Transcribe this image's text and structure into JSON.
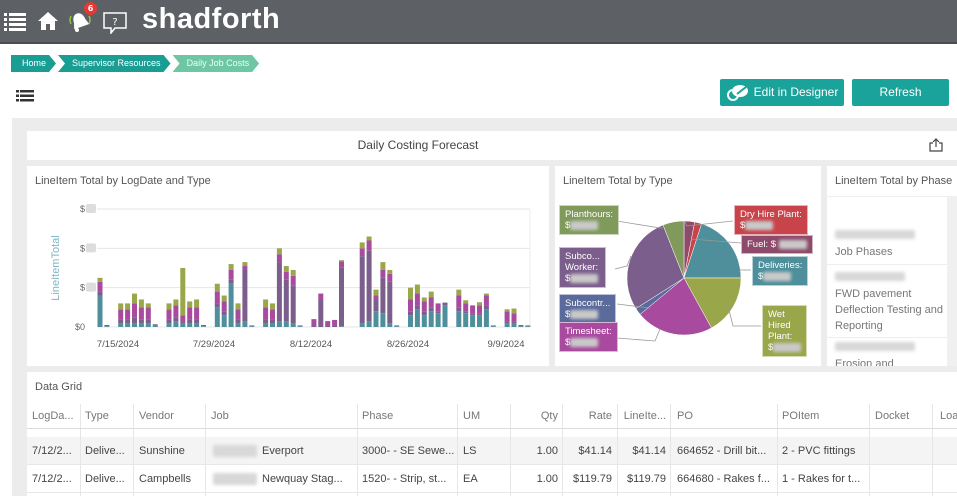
{
  "header": {
    "brand": "shadforth",
    "notification_count": "6",
    "icons": [
      "menu-icon",
      "home-icon",
      "bell-icon",
      "help-chat-icon"
    ]
  },
  "breadcrumb": [
    "Home",
    "Supervisor Resources",
    "Daily Job Costs"
  ],
  "toolbar": {
    "edit_label": "Edit in Designer",
    "refresh_label": "Refresh"
  },
  "dashboard": {
    "title": "Daily Costing Forecast"
  },
  "colors": {
    "accent": "#1aa39a",
    "teal": "#4e8f9b",
    "purple": "#7c5e8d",
    "magenta": "#a84a9e",
    "olive": "#9aa64a",
    "red": "#c8444a",
    "mauve": "#8e4a6a",
    "blue": "#5a6a9a",
    "green": "#7f9a5a"
  },
  "bar_panel": {
    "title": "LineItem Total by LogDate and Type"
  },
  "pie_panel": {
    "title": "LineItem Total by Type"
  },
  "phase_panel": {
    "title": "LineItem Total by Phase",
    "items": [
      "Job Phases",
      "FWD pavement Deflection Testing and Reporting",
      "Erosion and"
    ]
  },
  "chart_data": [
    {
      "type": "bar",
      "stacked": true,
      "title": "LineItem Total by LogDate and Type",
      "xlabel": "",
      "ylabel": "LineItemTotal",
      "ytick_labels": [
        "$0",
        "$",
        "$",
        "$"
      ],
      "ylim": [
        0,
        3
      ],
      "grid": true,
      "xtick_labels": [
        "7/15/2024",
        "7/29/2024",
        "8/12/2024",
        "8/26/2024",
        "9/9/2024"
      ],
      "series_colors": [
        "#4e8f9b",
        "#7c5e8d",
        "#a84a9e",
        "#9aa64a"
      ],
      "dates": [
        "7/12",
        "7/13",
        "7/15",
        "7/16",
        "7/17",
        "7/18",
        "7/19",
        "7/20",
        "7/22",
        "7/23",
        "7/24",
        "7/25",
        "7/26",
        "7/27",
        "7/29",
        "7/30",
        "7/31",
        "8/1",
        "8/2",
        "8/3",
        "8/5",
        "8/6",
        "8/7",
        "8/8",
        "8/9",
        "8/10",
        "8/12",
        "8/13",
        "8/14",
        "8/15",
        "8/16",
        "8/19",
        "8/20",
        "8/21",
        "8/22",
        "8/23",
        "8/24",
        "8/26",
        "8/27",
        "8/28",
        "8/29",
        "8/30",
        "8/31",
        "9/2",
        "9/3",
        "9/4",
        "9/5",
        "9/6",
        "9/7",
        "9/9",
        "9/10",
        "9/11",
        "9/12"
      ],
      "stacks": [
        [
          0.8,
          0.1,
          0.25,
          0.1
        ],
        [
          0.02,
          0.03,
          0,
          0
        ],
        [
          0.1,
          0.1,
          0.25,
          0.15
        ],
        [
          0.1,
          0.1,
          0.25,
          0.15
        ],
        [
          0.1,
          0.15,
          0.35,
          0.25
        ],
        [
          0.1,
          0.1,
          0.3,
          0.2
        ],
        [
          0.1,
          0.1,
          0.3,
          0.1
        ],
        [
          0.03,
          0.04,
          0,
          0
        ],
        [
          0.1,
          0.1,
          0.25,
          0.15
        ],
        [
          0.15,
          0.1,
          0.3,
          0.15
        ],
        [
          0.1,
          0.05,
          0.15,
          1.2
        ],
        [
          0.1,
          0.1,
          0.3,
          0.15
        ],
        [
          0.1,
          0.1,
          0.3,
          0.2
        ],
        [
          0.02,
          0.03,
          0,
          0
        ],
        [
          0.5,
          0.1,
          0.3,
          0.2
        ],
        [
          0.3,
          0.1,
          0.25,
          0.15
        ],
        [
          1.1,
          0.1,
          0.25,
          0.15
        ],
        [
          0.1,
          0.1,
          0.25,
          0.15
        ],
        [
          0.15,
          1.3,
          0.1,
          0.1
        ],
        [
          0.02,
          0.02,
          0,
          0
        ],
        [
          0.1,
          0.1,
          0.3,
          0.2
        ],
        [
          0.1,
          0.1,
          0.25,
          0.15
        ],
        [
          0.15,
          1.5,
          0.2,
          0.15
        ],
        [
          0.15,
          1.05,
          0.2,
          0.15
        ],
        [
          0.1,
          0.95,
          0.25,
          0.15
        ],
        [
          0.02,
          0.02,
          0,
          0
        ],
        [
          0,
          0.05,
          0.15,
          0
        ],
        [
          0,
          0.7,
          0.15,
          0
        ],
        [
          0,
          0.05,
          0.1,
          0
        ],
        [
          0,
          0.05,
          0.13,
          0
        ],
        [
          0.02,
          1.5,
          0.15,
          0.03
        ],
        [
          0.1,
          1.7,
          0.2,
          0.15
        ],
        [
          0.15,
          1.8,
          0.25,
          0.1
        ],
        [
          0.4,
          0.3,
          0.1,
          0.15
        ],
        [
          0.35,
          0.9,
          0.2,
          0.2
        ],
        [
          0.1,
          1.05,
          0.2,
          0.1
        ],
        [
          0.02,
          0.02,
          0,
          0
        ],
        [
          0.3,
          0.1,
          0.3,
          0.3
        ],
        [
          0.45,
          0.1,
          0.3,
          0.23
        ],
        [
          0.3,
          0.1,
          0.25,
          0.1
        ],
        [
          0.4,
          0.1,
          0.25,
          0.15
        ],
        [
          0.35,
          0.05,
          0.2,
          0
        ],
        [
          0.55,
          0.07,
          0,
          0
        ],
        [
          0.4,
          0.1,
          0.3,
          0.15
        ],
        [
          0.35,
          0.05,
          0.2,
          0.08
        ],
        [
          0.3,
          0.05,
          0.2,
          0
        ],
        [
          0.3,
          0.05,
          0.2,
          0.08
        ],
        [
          0.45,
          0.1,
          0.25,
          0.05
        ],
        [
          0.02,
          0.02,
          0,
          0
        ],
        [
          0.1,
          0.05,
          0.25,
          0.05
        ],
        [
          0.1,
          0.05,
          0.2,
          0.12
        ],
        [
          0.02,
          0.03,
          0,
          0
        ],
        [
          0.02,
          0.02,
          0,
          0
        ]
      ],
      "day_index": [
        0,
        1,
        3,
        4,
        5,
        6,
        7,
        8,
        10,
        11,
        12,
        13,
        14,
        15,
        17,
        18,
        19,
        20,
        21,
        22,
        24,
        25,
        26,
        27,
        28,
        29,
        31,
        32,
        33,
        34,
        35,
        38,
        39,
        40,
        41,
        42,
        43,
        45,
        46,
        47,
        48,
        49,
        50,
        52,
        53,
        54,
        55,
        56,
        57,
        59,
        60,
        61,
        62
      ]
    },
    {
      "type": "pie",
      "title": "LineItem Total by Type",
      "slices": [
        {
          "label": "Fuel",
          "value": 3,
          "color": "#8e4a6a"
        },
        {
          "label": "Dry Hire Plant",
          "value": 2,
          "color": "#c8444a"
        },
        {
          "label": "Deliveries",
          "value": 20,
          "color": "#4e8f9b"
        },
        {
          "label": "Wet Hired Plant",
          "value": 17,
          "color": "#9aa64a"
        },
        {
          "label": "Timesheet",
          "value": 22,
          "color": "#a84a9e"
        },
        {
          "label": "Subcontr...",
          "value": 2,
          "color": "#5a6a9a"
        },
        {
          "label": "Subco... Worker",
          "value": 28,
          "color": "#7c5e8d"
        },
        {
          "label": "Planthours",
          "value": 6,
          "color": "#7f9a5a"
        }
      ],
      "label_texts": {
        "planthours": "Planthours:",
        "subco_worker_1": "Subco...",
        "subco_worker_2": "Worker:",
        "subcontr": "Subcontr...",
        "timesheet": "Timesheet:",
        "dry_hire": "Dry Hire Plant:",
        "fuel": "Fuel: $",
        "deliveries": "Deliveries:",
        "wet_1": "Wet",
        "wet_2": "Hired",
        "wet_3": "Plant:",
        "currency": "$"
      }
    }
  ],
  "grid": {
    "title": "Data Grid",
    "columns": [
      "LogDa...",
      "Type",
      "Vendor",
      "Job",
      "Phase",
      "UM",
      "Qty",
      "Rate",
      "LineIte...",
      "PO",
      "POItem",
      "Docket",
      "Loa"
    ],
    "rows": [
      [
        "7/12/2...",
        "Delive...",
        "Sunshine",
        "Everport",
        "3000- - SE Sewe...",
        "LS",
        "1.00",
        "$41.14",
        "$41.14",
        "664652 - Drill bit...",
        "2 - PVC fittings",
        "",
        ""
      ],
      [
        "7/12/2...",
        "Delive...",
        "Campbells",
        "Newquay Stag...",
        "1520- - Strip, st...",
        "EA",
        "1.00",
        "$119.79",
        "$119.79",
        "664680 - Rakes f...",
        "1 - Rakes for t...",
        "",
        ""
      ]
    ]
  }
}
